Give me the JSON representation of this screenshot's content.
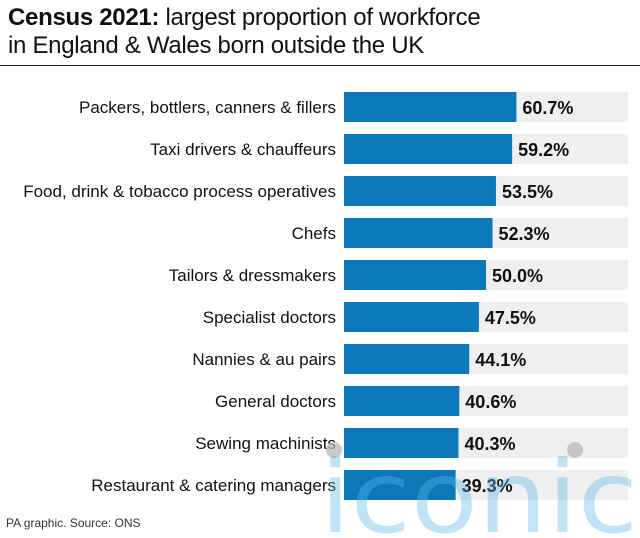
{
  "title": {
    "bold": "Census 2021:",
    "line1_rest": " largest proportion of workforce",
    "line2": "in England & Wales born outside the UK"
  },
  "source": "PA graphic. Source: ONS",
  "watermark": "iconic",
  "colors": {
    "bar": "#0a78b9",
    "track": "#efefef",
    "label": "#111111"
  },
  "chart_data": {
    "type": "bar",
    "orientation": "horizontal",
    "title": "Census 2021: largest proportion of workforce in England & Wales born outside the UK",
    "categories": [
      "Packers, bottlers, canners & fillers",
      "Taxi drivers & chauffeurs",
      "Food, drink & tobacco process operatives",
      "Chefs",
      "Tailors & dressmakers",
      "Specialist doctors",
      "Nannies & au pairs",
      "General doctors",
      "Sewing machinists",
      "Restaurant & catering managers"
    ],
    "values": [
      60.7,
      59.2,
      53.5,
      52.3,
      50.0,
      47.5,
      44.1,
      40.6,
      40.3,
      39.3
    ],
    "value_labels": [
      "60.7%",
      "59.2%",
      "53.5%",
      "52.3%",
      "50.0%",
      "47.5%",
      "44.1%",
      "40.6%",
      "40.3%",
      "39.3%"
    ],
    "xlim": [
      0,
      100
    ],
    "grid": false,
    "legend": "none"
  }
}
